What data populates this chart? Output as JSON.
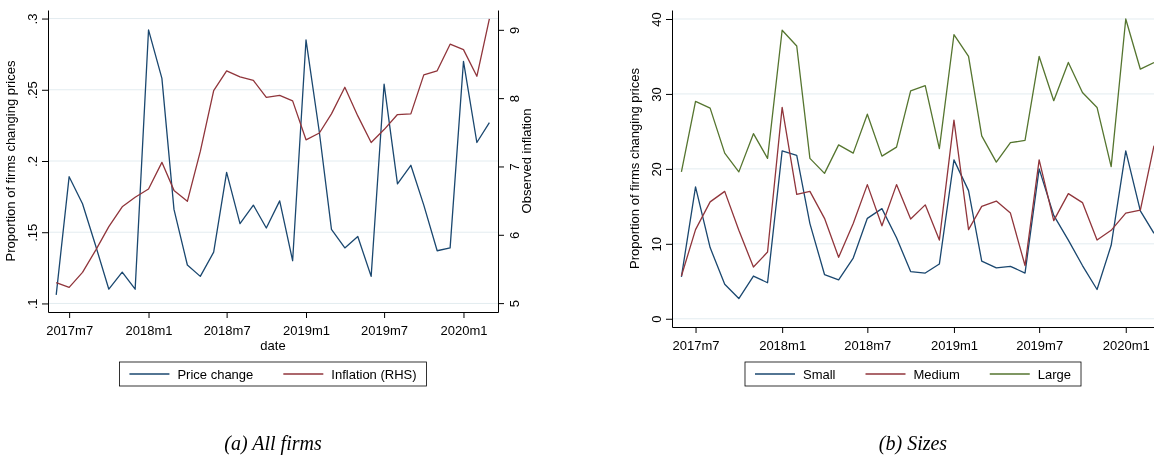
{
  "chart_data": [
    {
      "type": "line",
      "xlabel": "date",
      "ylabel": "Proportion of firms changing prices",
      "y2label": "Observed inflation",
      "x": [
        "2017-06",
        "2017-07",
        "2017-08",
        "2017-09",
        "2017-10",
        "2017-11",
        "2017-12",
        "2018-01",
        "2018-02",
        "2018-03",
        "2018-04",
        "2018-05",
        "2018-06",
        "2018-07",
        "2018-08",
        "2018-09",
        "2018-10",
        "2018-11",
        "2018-12",
        "2019-01",
        "2019-02",
        "2019-03",
        "2019-04",
        "2019-05",
        "2019-06",
        "2019-07",
        "2019-08",
        "2019-09",
        "2019-10",
        "2019-11",
        "2019-12",
        "2020-01",
        "2020-02",
        "2020-03"
      ],
      "series": [
        {
          "name": "Price change",
          "color": "#1a476f",
          "values": [
            0.106,
            0.189,
            0.17,
            0.14,
            0.11,
            0.122,
            0.11,
            0.292,
            0.258,
            0.166,
            0.127,
            0.119,
            0.136,
            0.192,
            0.156,
            0.169,
            0.153,
            0.172,
            0.13,
            0.285,
            0.22,
            0.152,
            0.139,
            0.147,
            0.119,
            0.254,
            0.184,
            0.197,
            0.169,
            0.137,
            0.139,
            0.27,
            0.213,
            0.227
          ]
        },
        {
          "name": "Inflation (RHS)",
          "color": "#90353b",
          "axis": "y2",
          "values": [
            5.3,
            5.23,
            5.45,
            5.78,
            6.12,
            6.41,
            6.55,
            6.67,
            7.06,
            6.65,
            6.49,
            7.22,
            8.11,
            8.4,
            8.31,
            8.26,
            8.01,
            8.04,
            7.96,
            7.39,
            7.49,
            7.77,
            8.16,
            7.74,
            7.35,
            7.54,
            7.76,
            7.77,
            8.34,
            8.4,
            8.79,
            8.71,
            8.32,
            9.16
          ]
        }
      ],
      "xlim": [
        "2017-05-13",
        "2020-03-21"
      ],
      "xticks": [
        {
          "value": "2017-07",
          "label": "2017m7"
        },
        {
          "value": "2018-01",
          "label": "2018m1"
        },
        {
          "value": "2018-07",
          "label": "2018m7"
        },
        {
          "value": "2019-01",
          "label": "2019m1"
        },
        {
          "value": "2019-07",
          "label": "2019m7"
        },
        {
          "value": "2020-01",
          "label": "2020m1"
        }
      ],
      "ylim": [
        0.094,
        0.306
      ],
      "yticks": [
        {
          "value": 0.1,
          "label": ".1"
        },
        {
          "value": 0.15,
          "label": ".15"
        },
        {
          "value": 0.2,
          "label": ".2"
        },
        {
          "value": 0.25,
          "label": ".25"
        },
        {
          "value": 0.3,
          "label": ".3"
        }
      ],
      "y2lim": [
        4.87,
        9.29
      ],
      "y2ticks": [
        5,
        6,
        7,
        8,
        9
      ],
      "grid": "y",
      "legend": "bottom",
      "line_style": "solid",
      "annotations": [
        "(a) All firms"
      ]
    },
    {
      "type": "line",
      "ylabel": "Proportion of firms changing prices",
      "x": [
        "2017-06",
        "2017-07",
        "2017-08",
        "2017-09",
        "2017-10",
        "2017-11",
        "2017-12",
        "2018-01",
        "2018-02",
        "2018-03",
        "2018-04",
        "2018-05",
        "2018-06",
        "2018-07",
        "2018-08",
        "2018-09",
        "2018-10",
        "2018-11",
        "2018-12",
        "2019-01",
        "2019-02",
        "2019-03",
        "2019-04",
        "2019-05",
        "2019-06",
        "2019-07",
        "2019-08",
        "2019-09",
        "2019-10",
        "2019-11",
        "2019-12",
        "2020-01",
        "2020-02",
        "2020-03"
      ],
      "series": [
        {
          "name": "Small",
          "color": "#1a476f",
          "values": [
            5.6,
            17.6,
            9.5,
            4.6,
            2.7,
            5.7,
            4.8,
            22.4,
            21.8,
            12.7,
            5.9,
            5.2,
            8.1,
            13.4,
            14.7,
            10.8,
            6.3,
            6.1,
            7.3,
            21.2,
            17.1,
            7.7,
            6.8,
            7.0,
            6.1,
            20.0,
            13.8,
            10.5,
            7.1,
            3.9,
            9.8,
            22.4,
            14.4,
            11.4
          ]
        },
        {
          "name": "Medium",
          "color": "#90353b",
          "values": [
            5.7,
            11.9,
            15.6,
            17.0,
            11.8,
            6.9,
            8.9,
            28.2,
            16.6,
            17.0,
            13.4,
            8.2,
            12.7,
            17.9,
            12.4,
            17.9,
            13.3,
            15.2,
            10.5,
            26.5,
            11.9,
            15.0,
            15.7,
            14.1,
            7.1,
            21.2,
            13.1,
            16.7,
            15.5,
            10.5,
            11.8,
            14.1,
            14.5,
            23.1
          ]
        },
        {
          "name": "Large",
          "color": "#55752f",
          "values": [
            19.6,
            29.0,
            28.1,
            22.1,
            19.6,
            24.7,
            21.4,
            38.5,
            36.4,
            21.4,
            19.4,
            23.2,
            22.1,
            27.3,
            21.7,
            22.9,
            30.4,
            31.1,
            22.7,
            37.9,
            35.0,
            24.4,
            20.9,
            23.5,
            23.8,
            35.0,
            29.1,
            34.2,
            30.2,
            28.2,
            20.3,
            40.0,
            33.3,
            34.2
          ]
        }
      ],
      "xlim": [
        "2017-05-12",
        "2020-03-01"
      ],
      "xticks": [
        {
          "value": "2017-07",
          "label": "2017m7"
        },
        {
          "value": "2018-01",
          "label": "2018m1"
        },
        {
          "value": "2018-07",
          "label": "2018m7"
        },
        {
          "value": "2019-01",
          "label": "2019m1"
        },
        {
          "value": "2019-07",
          "label": "2019m7"
        },
        {
          "value": "2020-01",
          "label": "2020m1"
        }
      ],
      "ylim": [
        -1.1,
        41.2
      ],
      "yticks": [
        0,
        10,
        20,
        30,
        40
      ],
      "grid": "y",
      "legend": "bottom",
      "line_style": "solid",
      "annotations": [
        "(b) Sizes"
      ]
    }
  ]
}
